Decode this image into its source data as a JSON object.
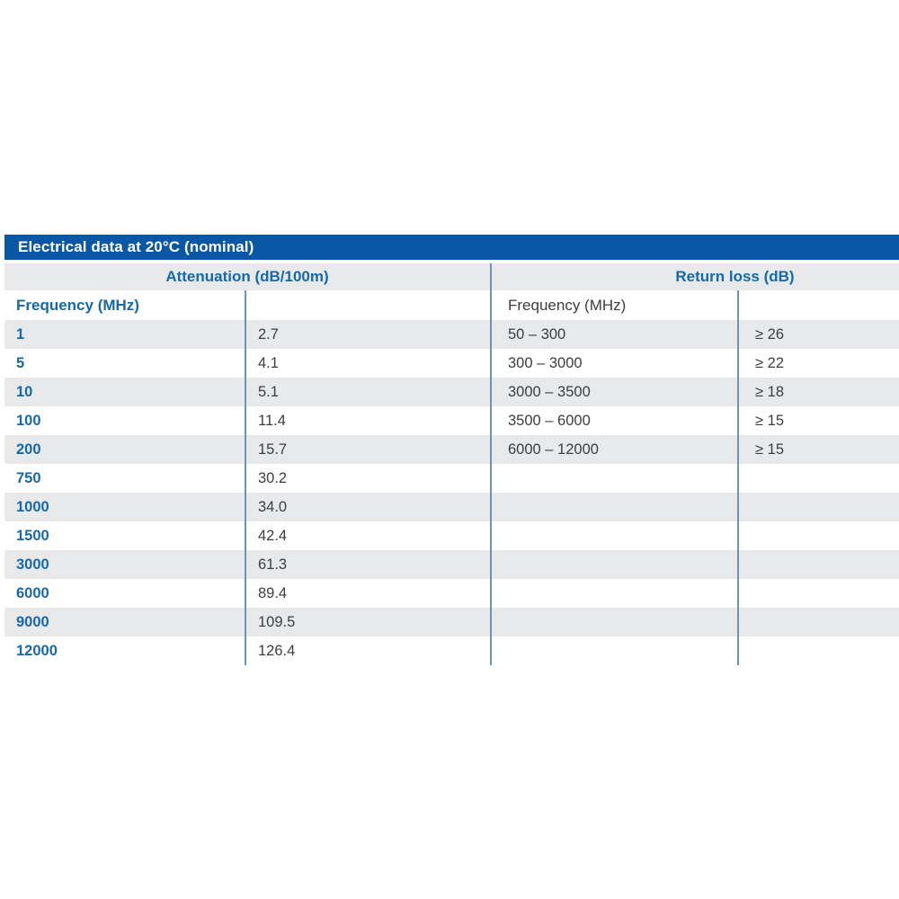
{
  "page_title": "Electrical data at 20°C (nominal)",
  "sections": {
    "attenuation": {
      "header": "Attenuation (dB/100m)",
      "column_header": "Frequency (MHz)",
      "rows": [
        {
          "frequency": "1",
          "value": "2.7"
        },
        {
          "frequency": "5",
          "value": "4.1"
        },
        {
          "frequency": "10",
          "value": "5.1"
        },
        {
          "frequency": "100",
          "value": "11.4"
        },
        {
          "frequency": "200",
          "value": "15.7"
        },
        {
          "frequency": "750",
          "value": "30.2"
        },
        {
          "frequency": "1000",
          "value": "34.0"
        },
        {
          "frequency": "1500",
          "value": "42.4"
        },
        {
          "frequency": "3000",
          "value": "61.3"
        },
        {
          "frequency": "6000",
          "value": "89.4"
        },
        {
          "frequency": "9000",
          "value": "109.5"
        },
        {
          "frequency": "12000",
          "value": "126.4"
        }
      ]
    },
    "return_loss": {
      "header": "Return loss (dB)",
      "column_header": "Frequency (MHz)",
      "rows": [
        {
          "frequency_range": "50 – 300",
          "value": "≥  26"
        },
        {
          "frequency_range": "300 – 3000",
          "value": "≥  22"
        },
        {
          "frequency_range": "3000 – 3500",
          "value": "≥  18"
        },
        {
          "frequency_range": "3500 – 6000",
          "value": "≥  15"
        },
        {
          "frequency_range": "6000 – 12000",
          "value": "≥  15"
        }
      ]
    }
  },
  "colors": {
    "title_bar_blue": "#0a58a5",
    "accent_text_blue": "#1569a9",
    "divider_steel_blue": "#6e93b9",
    "row_stripe_gray": "#e8e9ea",
    "body_text": "#3b3d40"
  }
}
